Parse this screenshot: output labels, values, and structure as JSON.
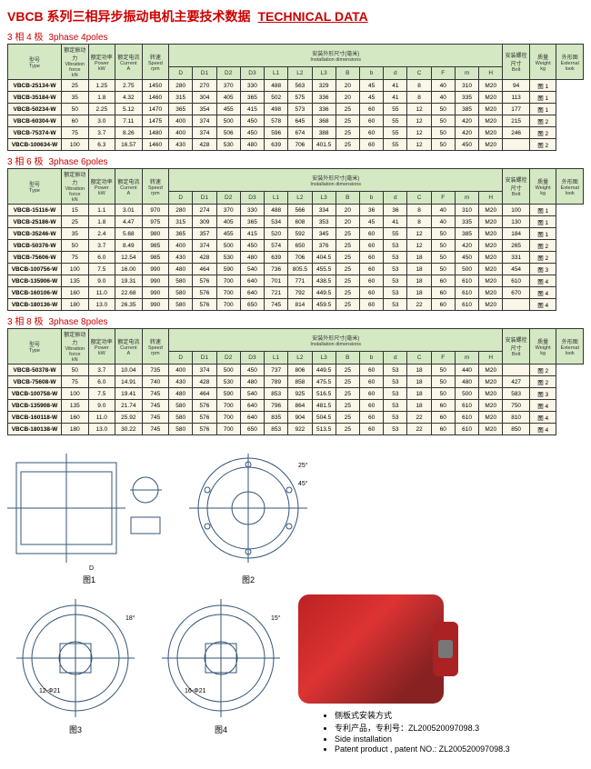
{
  "title_cn": "VBCB 系列三相异步振动电机主要技术数据",
  "title_en": "TECHNICAL DATA",
  "sections": [
    {
      "cn": "3 相 4 极",
      "en": "3phase 4poles",
      "rows": [
        [
          "VBCB-25134-W",
          "25",
          "1.25",
          "2.75",
          "1450",
          "280",
          "270",
          "370",
          "330",
          "488",
          "563",
          "329",
          "20",
          "45",
          "41",
          "8",
          "40",
          "310",
          "M20",
          "94",
          "图 1"
        ],
        [
          "VBCB-35184-W",
          "35",
          "1.8",
          "4.32",
          "1460",
          "315",
          "304",
          "405",
          "365",
          "502",
          "575",
          "336",
          "20",
          "45",
          "41",
          "8",
          "40",
          "335",
          "M20",
          "113",
          "图 1"
        ],
        [
          "VBCB-50234-W",
          "50",
          "2.25",
          "5.12",
          "1470",
          "365",
          "354",
          "455",
          "415",
          "498",
          "573",
          "336",
          "25",
          "60",
          "55",
          "12",
          "50",
          "385",
          "M20",
          "177",
          "图 1"
        ],
        [
          "VBCB-60304-W",
          "60",
          "3.0",
          "7.11",
          "1475",
          "400",
          "374",
          "500",
          "450",
          "578",
          "645",
          "368",
          "25",
          "60",
          "55",
          "12",
          "50",
          "420",
          "M20",
          "215",
          "图 2"
        ],
        [
          "VBCB-75374-W",
          "75",
          "3.7",
          "8.26",
          "1480",
          "400",
          "374",
          "506",
          "450",
          "596",
          "674",
          "388",
          "25",
          "60",
          "55",
          "12",
          "50",
          "420",
          "M20",
          "246",
          "图 2"
        ],
        [
          "VBCB-100634-W",
          "100",
          "6.3",
          "16.57",
          "1460",
          "430",
          "428",
          "530",
          "480",
          "639",
          "706",
          "401.5",
          "25",
          "60",
          "55",
          "12",
          "50",
          "450",
          "M20",
          "",
          "图 2"
        ]
      ]
    },
    {
      "cn": "3 相 6 极",
      "en": "3phase 6poles",
      "rows": [
        [
          "VBCB-15116-W",
          "15",
          "1.1",
          "3.01",
          "970",
          "280",
          "274",
          "370",
          "330",
          "488",
          "566",
          "334",
          "20",
          "36",
          "36",
          "8",
          "40",
          "310",
          "M20",
          "100",
          "图 1"
        ],
        [
          "VBCB-25186-W",
          "25",
          "1.8",
          "4.47",
          "975",
          "315",
          "309",
          "405",
          "365",
          "534",
          "608",
          "353",
          "20",
          "45",
          "41",
          "8",
          "40",
          "335",
          "M20",
          "130",
          "图 1"
        ],
        [
          "VBCB-35246-W",
          "35",
          "2.4",
          "5.68",
          "980",
          "365",
          "357",
          "455",
          "415",
          "520",
          "592",
          "345",
          "25",
          "60",
          "55",
          "12",
          "50",
          "385",
          "M20",
          "184",
          "图 1"
        ],
        [
          "VBCB-50376-W",
          "50",
          "3.7",
          "8.49",
          "985",
          "400",
          "374",
          "500",
          "450",
          "574",
          "650",
          "376",
          "25",
          "60",
          "53",
          "12",
          "50",
          "420",
          "M20",
          "265",
          "图 2"
        ],
        [
          "VBCB-75606-W",
          "75",
          "6.0",
          "12.54",
          "985",
          "430",
          "428",
          "530",
          "480",
          "639",
          "706",
          "404.5",
          "25",
          "60",
          "53",
          "18",
          "50",
          "450",
          "M20",
          "331",
          "图 2"
        ],
        [
          "VBCB-100756-W",
          "100",
          "7.5",
          "16.00",
          "990",
          "480",
          "464",
          "590",
          "540",
          "736",
          "805.5",
          "455.5",
          "25",
          "60",
          "53",
          "18",
          "50",
          "500",
          "M20",
          "454",
          "图 3"
        ],
        [
          "VBCB-135906-W",
          "135",
          "9.0",
          "19.31",
          "990",
          "580",
          "576",
          "700",
          "640",
          "701",
          "771",
          "438.5",
          "25",
          "60",
          "53",
          "18",
          "60",
          "610",
          "M20",
          "610",
          "图 4"
        ],
        [
          "VBCB-160106-W",
          "160",
          "11.0",
          "22.68",
          "990",
          "580",
          "576",
          "700",
          "640",
          "721",
          "792",
          "449.5",
          "25",
          "60",
          "53",
          "18",
          "60",
          "610",
          "M20",
          "670",
          "图 4"
        ],
        [
          "VBCB-180136-W",
          "180",
          "13.0",
          "26.35",
          "990",
          "580",
          "576",
          "700",
          "650",
          "745",
          "814",
          "459.5",
          "25",
          "60",
          "53",
          "22",
          "60",
          "610",
          "M20",
          "",
          "图 4"
        ]
      ]
    },
    {
      "cn": "3 相 8 极",
      "en": "3phase 8poles",
      "rows": [
        [
          "VBCB-50378-W",
          "50",
          "3.7",
          "10.04",
          "735",
          "400",
          "374",
          "500",
          "450",
          "737",
          "806",
          "449.5",
          "25",
          "60",
          "53",
          "18",
          "50",
          "440",
          "M20",
          "",
          "图 2"
        ],
        [
          "VBCB-75608-W",
          "75",
          "6.0",
          "14.91",
          "740",
          "430",
          "428",
          "530",
          "480",
          "789",
          "858",
          "475.5",
          "25",
          "60",
          "53",
          "18",
          "50",
          "480",
          "M20",
          "427",
          "图 2"
        ],
        [
          "VBCB-100758-W",
          "100",
          "7.5",
          "19.41",
          "745",
          "480",
          "464",
          "590",
          "540",
          "853",
          "925",
          "516.5",
          "25",
          "60",
          "53",
          "18",
          "50",
          "500",
          "M20",
          "583",
          "图 3"
        ],
        [
          "VBCB-135908-W",
          "135",
          "9.0",
          "21.74",
          "745",
          "580",
          "576",
          "700",
          "640",
          "796",
          "864",
          "481.5",
          "25",
          "60",
          "53",
          "18",
          "60",
          "610",
          "M20",
          "750",
          "图 4"
        ],
        [
          "VBCB-160118-W",
          "160",
          "11.0",
          "25.92",
          "745",
          "580",
          "576",
          "700",
          "640",
          "835",
          "904",
          "504.5",
          "25",
          "60",
          "53",
          "22",
          "60",
          "610",
          "M20",
          "810",
          "图 4"
        ],
        [
          "VBCB-180138-W",
          "180",
          "13.0",
          "30.22",
          "745",
          "580",
          "576",
          "700",
          "650",
          "853",
          "922",
          "513.5",
          "25",
          "60",
          "53",
          "22",
          "60",
          "610",
          "M20",
          "850",
          "图 4"
        ]
      ]
    }
  ],
  "headers": {
    "type": {
      "cn": "型号",
      "en": "Type"
    },
    "force": {
      "cn": "额定振动力",
      "en": "Vibration force",
      "unit": "kN"
    },
    "power": {
      "cn": "额定功率",
      "en": "Power",
      "unit": "kW"
    },
    "current": {
      "cn": "额定电流",
      "en": "Current",
      "unit": "A"
    },
    "speed": {
      "cn": "转速",
      "en": "Speed",
      "unit": "rpm"
    },
    "install": {
      "cn": "安装外形尺寸(毫米)",
      "en": "Installation dimensions"
    },
    "dims": [
      "D",
      "D1",
      "D2",
      "D3",
      "L1",
      "L2",
      "L3",
      "B",
      "b",
      "d",
      "C",
      "F",
      "m",
      "H"
    ],
    "bolt": {
      "cn": "安装螺栓尺寸",
      "en": "Bolt"
    },
    "weight": {
      "cn": "质量",
      "en": "Weight",
      "unit": "kg"
    },
    "look": {
      "cn": "外形图",
      "en": "External look"
    }
  },
  "figs": [
    "图1",
    "图2",
    "图3",
    "图4"
  ],
  "notes": [
    "侧板式安装方式",
    "专利产品，专利号：ZL200520097098.3",
    "Side installation",
    "Patent product , patent NO.: ZL200520097098.3"
  ],
  "colors": {
    "hdr": "#d4e8c4",
    "cell": "#faf6e8",
    "accent": "#c00"
  }
}
